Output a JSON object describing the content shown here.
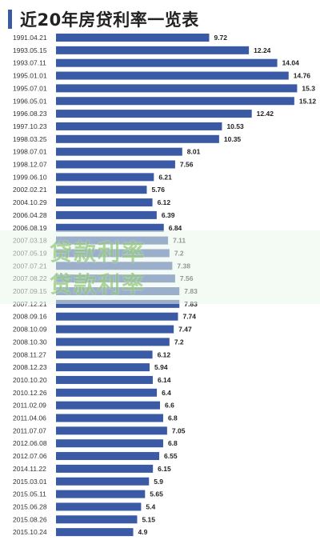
{
  "title": "近20年房贷利率一览表",
  "colors": {
    "bar": "#3b5aa5",
    "accent": "#3b5aa5",
    "watermark": "#6eb450"
  },
  "watermark": {
    "line1": "贷款利率",
    "line2": "贷款利率"
  },
  "chart_data": {
    "type": "bar",
    "orientation": "horizontal",
    "title": "近20年房贷利率一览表",
    "xlabel": "",
    "ylabel": "",
    "xlim": [
      0,
      16
    ],
    "grid": false,
    "categories": [
      "1991.04.21",
      "1993.05.15",
      "1993.07.11",
      "1995.01.01",
      "1995.07.01",
      "1996.05.01",
      "1996.08.23",
      "1997.10.23",
      "1998.03.25",
      "1998.07.01",
      "1998.12.07",
      "1999.06.10",
      "2002.02.21",
      "2004.10.29",
      "2006.04.28",
      "2006.08.19",
      "2007.03.18",
      "2007.05.19",
      "2007.07.21",
      "2007.08.22",
      "2007.09.15",
      "2007.12.21",
      "2008.09.16",
      "2008.10.09",
      "2008.10.30",
      "2008.11.27",
      "2008.12.23",
      "2010.10.20",
      "2010.12.26",
      "2011.02.09",
      "2011.04.06",
      "2011.07.07",
      "2012.06.08",
      "2012.07.06",
      "2014.11.22",
      "2015.03.01",
      "2015.05.11",
      "2015.06.28",
      "2015.08.26",
      "2015.10.24"
    ],
    "values": [
      9.72,
      12.24,
      14.04,
      14.76,
      15.3,
      15.12,
      12.42,
      10.53,
      10.35,
      8.01,
      7.56,
      6.21,
      5.76,
      6.12,
      6.39,
      6.84,
      7.11,
      7.2,
      7.38,
      7.56,
      7.83,
      7.83,
      7.74,
      7.47,
      7.2,
      6.12,
      5.94,
      6.14,
      6.4,
      6.6,
      6.8,
      7.05,
      6.8,
      6.55,
      6.15,
      5.9,
      5.65,
      5.4,
      5.15,
      4.9
    ],
    "value_labels": [
      "9.72",
      "12.24",
      "14.04",
      "14.76",
      "15.3",
      "15.12",
      "12.42",
      "10.53",
      "10.35",
      "8.01",
      "7.56",
      "6.21",
      "5.76",
      "6.12",
      "6.39",
      "6.84",
      "7.11",
      "7.2",
      "7.38",
      "7.56",
      "7.83",
      "7.83",
      "7.74",
      "7.47",
      "7.2",
      "6.12",
      "5.94",
      "6.14",
      "6.4",
      "6.6",
      "6.8",
      "7.05",
      "6.8",
      "6.55",
      "6.15",
      "5.9",
      "5.65",
      "5.4",
      "5.15",
      "4.9"
    ]
  }
}
